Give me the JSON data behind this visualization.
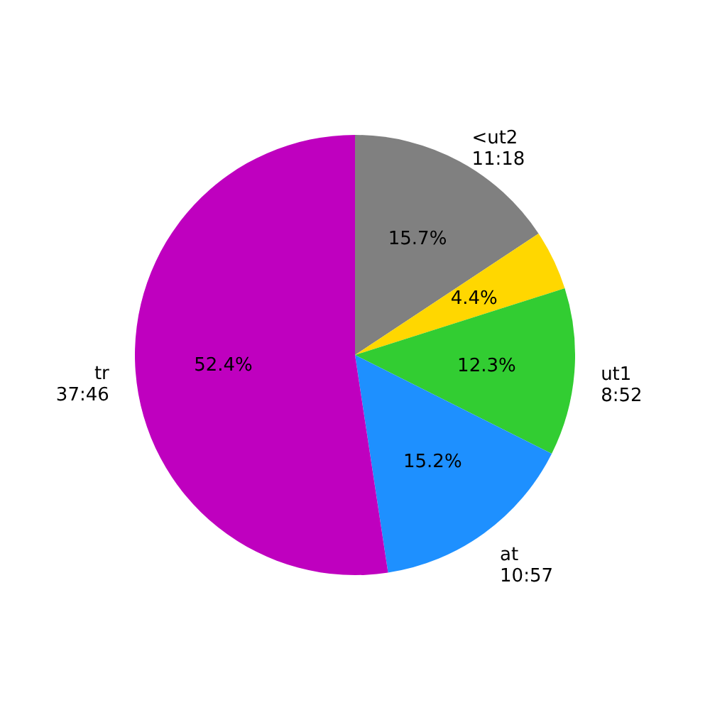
{
  "chart_data": {
    "type": "pie",
    "categories": [
      "<ut2\n11:18",
      null,
      "ut1\n8:52",
      "at\n10:57",
      "tr\n37:46"
    ],
    "values": [
      15.7,
      4.4,
      12.3,
      15.2,
      52.4
    ],
    "value_labels": [
      "15.7%",
      "4.4%",
      "12.3%",
      "15.2%",
      "52.4%"
    ],
    "colors": [
      "#808080",
      "#ffd700",
      "#32cd32",
      "#1e90ff",
      "#bf00bf"
    ]
  }
}
